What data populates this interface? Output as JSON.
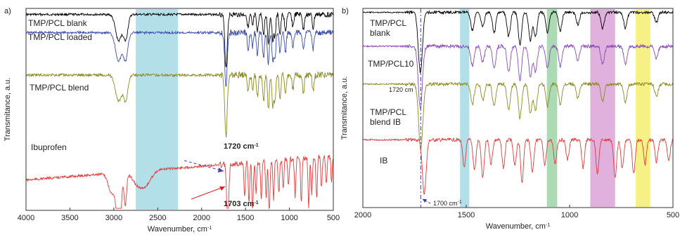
{
  "chart_data": [
    {
      "panel_label": "a)",
      "type": "line",
      "xlabel": "Wavenumber, cm",
      "xlabel_sup": "-1",
      "ylabel": "Transmitance, a.u.",
      "xlim": [
        4000,
        500
      ],
      "x_ticks": [
        4000,
        3500,
        3000,
        2500,
        2000,
        1500,
        1000,
        500
      ],
      "bands": [
        {
          "from": 2750,
          "to": 2270,
          "color": "#a6dbe4"
        }
      ],
      "series": [
        {
          "name": "TMP/PCL blank",
          "color": "#000000",
          "offset": 0.03,
          "baseline": 0.06,
          "noise": 0.018,
          "dips": [
            [
              2945,
              0.13,
              35
            ],
            [
              2865,
              0.12,
              25
            ],
            [
              1722,
              0.26,
              14
            ],
            [
              1470,
              0.07,
              10
            ],
            [
              1420,
              0.06,
              10
            ],
            [
              1365,
              0.09,
              10
            ],
            [
              1295,
              0.11,
              10
            ],
            [
              1240,
              0.14,
              10
            ],
            [
              1190,
              0.12,
              10
            ],
            [
              1165,
              0.11,
              10
            ],
            [
              1107,
              0.1,
              10
            ],
            [
              1045,
              0.09,
              10
            ],
            [
              960,
              0.06,
              10
            ],
            [
              840,
              0.08,
              10
            ],
            [
              730,
              0.07,
              10
            ]
          ]
        },
        {
          "name": "TMP/PCL loaded",
          "color": "#3b4bb0",
          "offset": 0.12,
          "baseline": 0.13,
          "noise": 0.02,
          "dips": [
            [
              2945,
              0.14,
              35
            ],
            [
              2865,
              0.13,
              25
            ],
            [
              1722,
              0.26,
              14
            ],
            [
              1470,
              0.08,
              10
            ],
            [
              1420,
              0.07,
              10
            ],
            [
              1365,
              0.11,
              10
            ],
            [
              1295,
              0.13,
              10
            ],
            [
              1240,
              0.16,
              10
            ],
            [
              1190,
              0.14,
              10
            ],
            [
              1165,
              0.13,
              10
            ],
            [
              1107,
              0.11,
              10
            ],
            [
              1045,
              0.1,
              10
            ],
            [
              960,
              0.07,
              10
            ],
            [
              840,
              0.09,
              10
            ],
            [
              730,
              0.08,
              10
            ]
          ]
        },
        {
          "name": "TMP/PCL blend",
          "color": "#8b8b22",
          "offset": 0.33,
          "baseline": 0.41,
          "noise": 0.022,
          "dips": [
            [
              2945,
              0.13,
              35
            ],
            [
              2865,
              0.12,
              25
            ],
            [
              1722,
              0.3,
              14
            ],
            [
              1470,
              0.08,
              10
            ],
            [
              1420,
              0.07,
              10
            ],
            [
              1365,
              0.11,
              10
            ],
            [
              1295,
              0.13,
              10
            ],
            [
              1240,
              0.17,
              10
            ],
            [
              1190,
              0.15,
              10
            ],
            [
              1165,
              0.13,
              10
            ],
            [
              1107,
              0.12,
              10
            ],
            [
              1045,
              0.1,
              10
            ],
            [
              960,
              0.07,
              10
            ],
            [
              840,
              0.09,
              10
            ],
            [
              730,
              0.08,
              10
            ]
          ]
        },
        {
          "name": "Ibuprofen",
          "color": "#e63a3a",
          "offset": 0.8,
          "baseline": 0.62,
          "noise": 0.02,
          "dips": [
            [
              3020,
              0.1,
              40
            ],
            [
              2955,
              0.22,
              20
            ],
            [
              2925,
              0.19,
              15
            ],
            [
              2870,
              0.16,
              15
            ],
            [
              2730,
              0.06,
              60
            ],
            [
              2630,
              0.06,
              60
            ],
            [
              1703,
              0.31,
              12
            ],
            [
              1510,
              0.17,
              8
            ],
            [
              1460,
              0.2,
              8
            ],
            [
              1420,
              0.24,
              8
            ],
            [
              1380,
              0.16,
              8
            ],
            [
              1320,
              0.19,
              8
            ],
            [
              1265,
              0.18,
              8
            ],
            [
              1230,
              0.27,
              8
            ],
            [
              1180,
              0.2,
              8
            ],
            [
              1120,
              0.17,
              8
            ],
            [
              1070,
              0.15,
              8
            ],
            [
              1010,
              0.13,
              8
            ],
            [
              935,
              0.19,
              8
            ],
            [
              865,
              0.22,
              8
            ],
            [
              780,
              0.24,
              8
            ],
            [
              745,
              0.18,
              8
            ],
            [
              690,
              0.21,
              8
            ],
            [
              635,
              0.15,
              8
            ],
            [
              580,
              0.14,
              8
            ],
            [
              520,
              0.12,
              8
            ]
          ]
        }
      ],
      "legend_labels": [
        {
          "text": "TMP/PCL blank",
          "color": "#111111"
        },
        {
          "text": "TMP/PCL loaded",
          "color": "#111111"
        },
        {
          "text": "TMP/PCL blend",
          "color": "#111111"
        },
        {
          "text": "Ibuprofen",
          "color": "#111111"
        }
      ],
      "annotations": [
        {
          "text": "1720 cm",
          "sup": "-1",
          "color": "#4b3ea8"
        },
        {
          "text": "1703 cm",
          "sup": "-1",
          "color": "#e02020"
        }
      ]
    },
    {
      "panel_label": "b)",
      "type": "line",
      "xlabel": "Wavenumber, cm",
      "xlabel_sup": "-1",
      "ylabel": "Transmitance, a.u.",
      "xlim": [
        2000,
        500
      ],
      "x_ticks": [
        2000,
        1500,
        1000,
        500
      ],
      "bands": [
        {
          "from": 1530,
          "to": 1485,
          "color": "#a6dbe4"
        },
        {
          "from": 1110,
          "to": 1060,
          "color": "#9ed3a8"
        },
        {
          "from": 900,
          "to": 780,
          "color": "#d9a3d6"
        },
        {
          "from": 680,
          "to": 610,
          "color": "#f3ef70"
        }
      ],
      "series": [
        {
          "name": "TMP/PCL blank",
          "color": "#000000",
          "offset": 0.02,
          "baseline": 0.06,
          "noise": 0.01,
          "dips": [
            [
              1722,
              0.3,
              10
            ],
            [
              1470,
              0.09,
              8
            ],
            [
              1420,
              0.07,
              8
            ],
            [
              1365,
              0.1,
              8
            ],
            [
              1295,
              0.12,
              8
            ],
            [
              1240,
              0.16,
              8
            ],
            [
              1190,
              0.14,
              8
            ],
            [
              1165,
              0.12,
              8
            ],
            [
              1107,
              0.1,
              8
            ],
            [
              1045,
              0.09,
              8
            ],
            [
              960,
              0.06,
              8
            ],
            [
              840,
              0.08,
              8
            ],
            [
              730,
              0.08,
              8
            ],
            [
              580,
              0.05,
              8
            ]
          ]
        },
        {
          "name": "TMP/PCL10",
          "color": "#8a4bb8",
          "offset": 0.19,
          "baseline": 0.23,
          "noise": 0.012,
          "dips": [
            [
              1722,
              0.31,
              10
            ],
            [
              1470,
              0.1,
              8
            ],
            [
              1420,
              0.08,
              8
            ],
            [
              1365,
              0.11,
              8
            ],
            [
              1295,
              0.13,
              8
            ],
            [
              1240,
              0.17,
              8
            ],
            [
              1190,
              0.15,
              8
            ],
            [
              1165,
              0.13,
              8
            ],
            [
              1107,
              0.11,
              8
            ],
            [
              1045,
              0.1,
              8
            ],
            [
              960,
              0.07,
              8
            ],
            [
              840,
              0.09,
              8
            ],
            [
              730,
              0.09,
              8
            ],
            [
              580,
              0.06,
              8
            ]
          ]
        },
        {
          "name": "TMP/PCL blend IB",
          "color": "#8b8b22",
          "offset": 0.38,
          "baseline": 0.46,
          "noise": 0.012,
          "dips": [
            [
              1720,
              0.33,
              10
            ],
            [
              1470,
              0.1,
              8
            ],
            [
              1420,
              0.08,
              8
            ],
            [
              1365,
              0.11,
              8
            ],
            [
              1295,
              0.13,
              8
            ],
            [
              1240,
              0.17,
              8
            ],
            [
              1190,
              0.15,
              8
            ],
            [
              1165,
              0.13,
              8
            ],
            [
              1107,
              0.11,
              8
            ],
            [
              1045,
              0.1,
              8
            ],
            [
              960,
              0.07,
              8
            ],
            [
              840,
              0.09,
              8
            ],
            [
              730,
              0.09,
              8
            ],
            [
              580,
              0.06,
              8
            ]
          ]
        },
        {
          "name": "IB",
          "color": "#e63a3a",
          "offset": 0.66,
          "baseline": 0.7,
          "noise": 0.012,
          "dips": [
            [
              1703,
              0.27,
              9
            ],
            [
              1510,
              0.14,
              7
            ],
            [
              1460,
              0.15,
              7
            ],
            [
              1420,
              0.19,
              7
            ],
            [
              1380,
              0.12,
              7
            ],
            [
              1320,
              0.14,
              7
            ],
            [
              1265,
              0.13,
              7
            ],
            [
              1230,
              0.21,
              7
            ],
            [
              1180,
              0.16,
              7
            ],
            [
              1120,
              0.13,
              7
            ],
            [
              1070,
              0.12,
              7
            ],
            [
              1010,
              0.1,
              7
            ],
            [
              935,
              0.14,
              7
            ],
            [
              865,
              0.17,
              7
            ],
            [
              780,
              0.19,
              7
            ],
            [
              745,
              0.14,
              7
            ],
            [
              690,
              0.17,
              7
            ],
            [
              635,
              0.12,
              7
            ],
            [
              580,
              0.11,
              7
            ],
            [
              520,
              0.1,
              7
            ]
          ]
        }
      ],
      "legend_labels": [
        {
          "text": "TMP/PCL",
          "text2": "blank",
          "color": "#111111"
        },
        {
          "text": "TMP/PCL10",
          "color": "#111111"
        },
        {
          "text": "TMP/PCL",
          "text2": "blend IB",
          "color": "#111111"
        },
        {
          "text": "IB",
          "color": "#111111"
        }
      ],
      "annotations": [
        {
          "text": "1720 cm",
          "color": "#222222"
        },
        {
          "text": "1700 cm",
          "sup": "-1",
          "color": "#e02020"
        }
      ],
      "reference_lines": [
        {
          "x": 1720,
          "color": "#3b3b9a"
        }
      ]
    }
  ]
}
